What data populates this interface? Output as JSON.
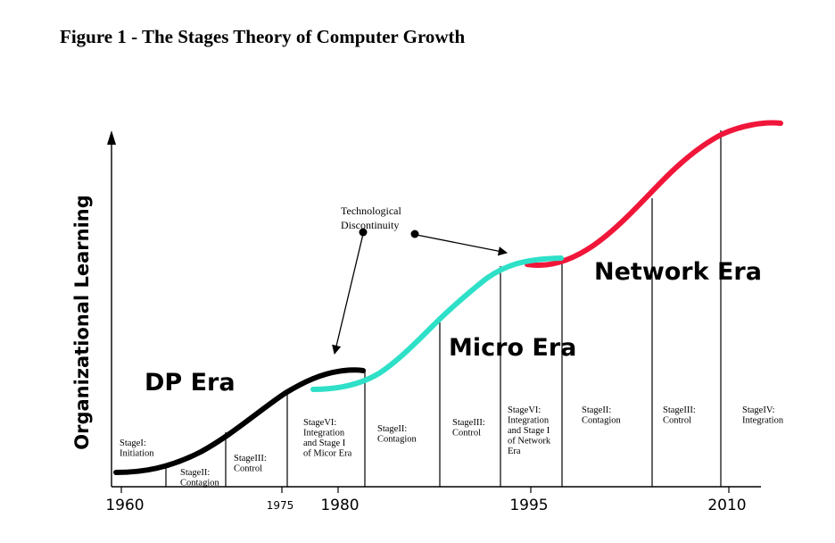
{
  "figure_title": "Figure 1 - The Stages Theory of Computer Growth",
  "y_axis_label": "Organizational Learning",
  "x_ticks": {
    "t1960": "1960",
    "t1975": "1975",
    "t1980": "1980",
    "t1995": "1995",
    "t2010": "2010"
  },
  "eras": {
    "dp": {
      "label": "DP Era",
      "color": "#000000"
    },
    "micro": {
      "label": "Micro Era",
      "color": "#2ee0c8"
    },
    "network": {
      "label": "Network Era",
      "color": "#f0163a"
    }
  },
  "annotation": {
    "line1": "Technological",
    "line2": "Discontinuity"
  },
  "stages": [
    {
      "lines": [
        "StageI:",
        "Initiation"
      ]
    },
    {
      "lines": [
        "StageII:",
        "Contagion"
      ]
    },
    {
      "lines": [
        "StageIII:",
        "Control"
      ]
    },
    {
      "lines": [
        "StageVI:",
        "Integration",
        "and Stage I",
        "of Micor Era"
      ]
    },
    {
      "lines": [
        "StageII:",
        "Contagion"
      ]
    },
    {
      "lines": [
        "StageIII:",
        "Control"
      ]
    },
    {
      "lines": [
        "StageVI:",
        "Integration",
        "and Stage I",
        "of Network",
        "Era"
      ]
    },
    {
      "lines": [
        "StageII:",
        "Contagion"
      ]
    },
    {
      "lines": [
        "StageIII:",
        "Control"
      ]
    },
    {
      "lines": [
        "StageIV:",
        "Integration"
      ]
    }
  ]
}
